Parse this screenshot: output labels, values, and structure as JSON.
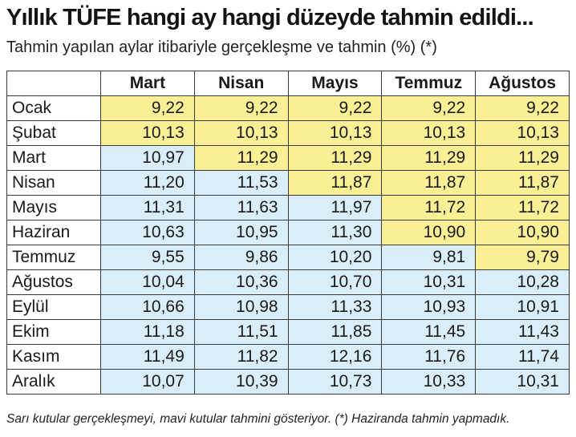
{
  "title": "Yıllık TÜFE hangi ay hangi düzeyde tahmin edildi...",
  "subtitle": "Tahmin yapılan aylar itibariyle gerçekleşme ve tahmin (%) (*)",
  "footnote": "Sarı kutular gerçekleşmeyi, mavi kutular tahmini gösteriyor. (*) Haziranda tahmin yapmadık.",
  "colors": {
    "actual": "#f9ef94",
    "forecast": "#daeef9"
  },
  "chart_data": {
    "type": "table",
    "columns": [
      "Mart",
      "Nisan",
      "Mayıs",
      "Temmuz",
      "Ağustos"
    ],
    "rows": [
      {
        "label": "Ocak",
        "values": [
          "9,22",
          "9,22",
          "9,22",
          "9,22",
          "9,22"
        ],
        "actual": [
          true,
          true,
          true,
          true,
          true
        ]
      },
      {
        "label": "Şubat",
        "values": [
          "10,13",
          "10,13",
          "10,13",
          "10,13",
          "10,13"
        ],
        "actual": [
          true,
          true,
          true,
          true,
          true
        ]
      },
      {
        "label": "Mart",
        "values": [
          "10,97",
          "11,29",
          "11,29",
          "11,29",
          "11,29"
        ],
        "actual": [
          false,
          true,
          true,
          true,
          true
        ]
      },
      {
        "label": "Nisan",
        "values": [
          "11,20",
          "11,53",
          "11,87",
          "11,87",
          "11,87"
        ],
        "actual": [
          false,
          false,
          true,
          true,
          true
        ]
      },
      {
        "label": "Mayıs",
        "values": [
          "11,31",
          "11,63",
          "11,97",
          "11,72",
          "11,72"
        ],
        "actual": [
          false,
          false,
          false,
          true,
          true
        ]
      },
      {
        "label": "Haziran",
        "values": [
          "10,63",
          "10,95",
          "11,30",
          "10,90",
          "10,90"
        ],
        "actual": [
          false,
          false,
          false,
          true,
          true
        ]
      },
      {
        "label": "Temmuz",
        "values": [
          "9,55",
          "9,86",
          "10,20",
          "9,81",
          "9,79"
        ],
        "actual": [
          false,
          false,
          false,
          false,
          true
        ]
      },
      {
        "label": "Ağustos",
        "values": [
          "10,04",
          "10,36",
          "10,70",
          "10,31",
          "10,28"
        ],
        "actual": [
          false,
          false,
          false,
          false,
          false
        ]
      },
      {
        "label": "Eylül",
        "values": [
          "10,66",
          "10,98",
          "11,33",
          "10,93",
          "10,91"
        ],
        "actual": [
          false,
          false,
          false,
          false,
          false
        ]
      },
      {
        "label": "Ekim",
        "values": [
          "11,18",
          "11,51",
          "11,85",
          "11,45",
          "11,43"
        ],
        "actual": [
          false,
          false,
          false,
          false,
          false
        ]
      },
      {
        "label": "Kasım",
        "values": [
          "11,49",
          "11,82",
          "12,16",
          "11,76",
          "11,74"
        ],
        "actual": [
          false,
          false,
          false,
          false,
          false
        ]
      },
      {
        "label": "Aralık",
        "values": [
          "10,07",
          "10,39",
          "10,73",
          "10,33",
          "10,31"
        ],
        "actual": [
          false,
          false,
          false,
          false,
          false
        ]
      }
    ]
  }
}
